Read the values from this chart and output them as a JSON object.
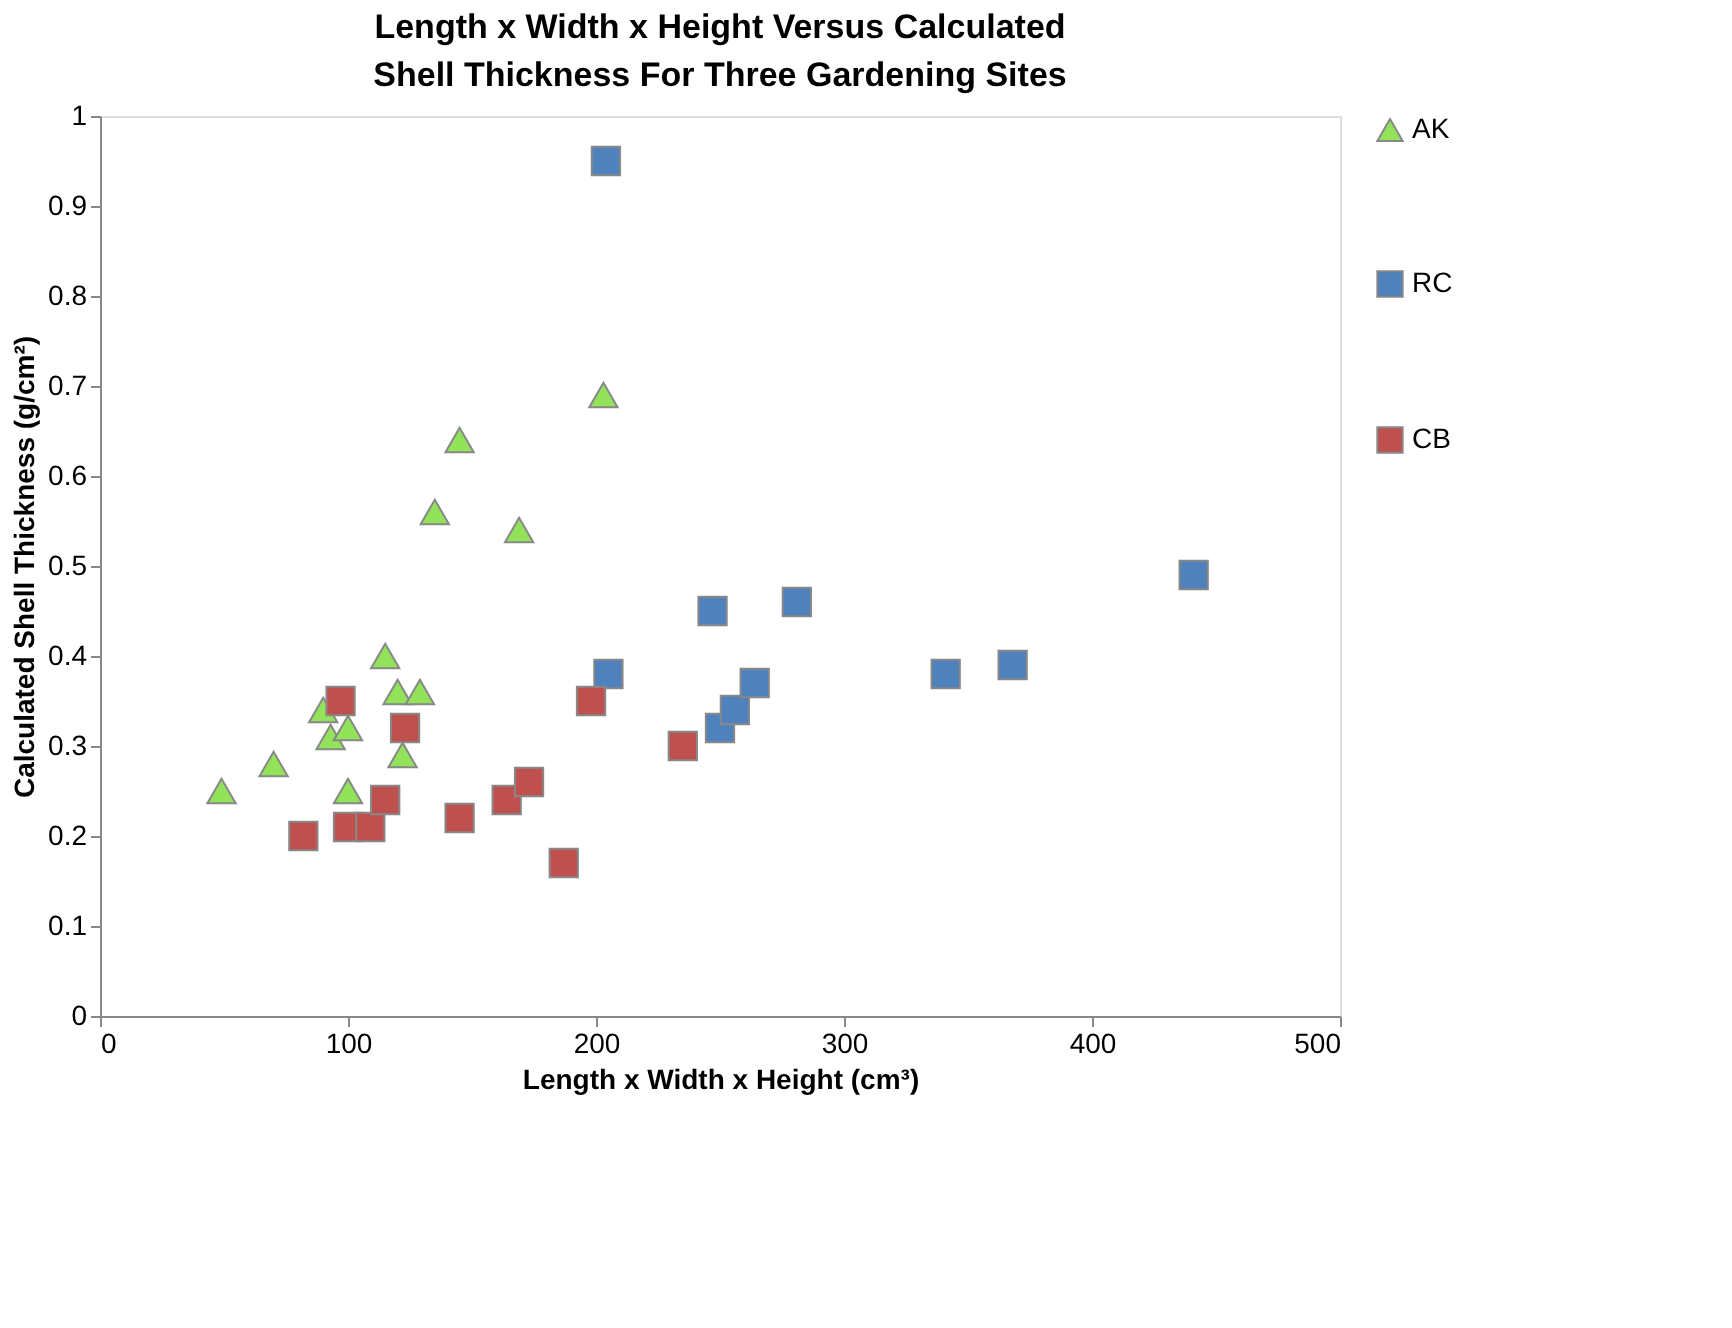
{
  "chart_data": {
    "type": "scatter",
    "title": "Length x Width x Height Versus Calculated Shell Thickness For Three Gardening Sites",
    "xlabel": "Length x Width x Height (cm³)",
    "ylabel": "Calculated Shell Thickness (g/cm²)",
    "xlim": [
      0,
      500
    ],
    "xticks": [
      0,
      100,
      200,
      300,
      400,
      500
    ],
    "ylim": [
      0,
      1
    ],
    "yticks": [
      0,
      0.1,
      0.2,
      0.3,
      0.4,
      0.5,
      0.6,
      0.7,
      0.8,
      0.9,
      1
    ],
    "grid": false,
    "legend": "right",
    "series": [
      {
        "name": "AK",
        "color": "#92e35a",
        "marker": "triangle",
        "x": [
          49,
          70,
          90,
          93,
          100,
          100,
          115,
          120,
          129,
          122,
          135,
          145,
          169,
          203
        ],
        "values": [
          0.25,
          0.28,
          0.34,
          0.31,
          0.32,
          0.25,
          0.4,
          0.36,
          0.36,
          0.29,
          0.56,
          0.64,
          0.54,
          0.69
        ]
      },
      {
        "name": "RC",
        "color": "#4f81bd",
        "marker": "square",
        "x": [
          204,
          205,
          247,
          281,
          250,
          256,
          264,
          341,
          368,
          441
        ],
        "values": [
          0.95,
          0.38,
          0.45,
          0.46,
          0.32,
          0.34,
          0.37,
          0.38,
          0.39,
          0.49
        ]
      },
      {
        "name": "CB",
        "color": "#c0504d",
        "marker": "square",
        "x": [
          82,
          97,
          100,
          109,
          115,
          123,
          145,
          164,
          173,
          187,
          198,
          235
        ],
        "values": [
          0.2,
          0.35,
          0.21,
          0.21,
          0.24,
          0.32,
          0.22,
          0.24,
          0.26,
          0.17,
          0.35,
          0.3
        ]
      }
    ]
  }
}
